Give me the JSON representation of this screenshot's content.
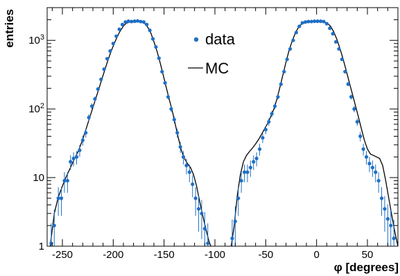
{
  "chart_data": {
    "type": "scatter",
    "title": "",
    "xlabel": "φ [degrees]",
    "ylabel": "entries",
    "xlim": [
      -265,
      80
    ],
    "ylim": [
      1,
      3000
    ],
    "yscale": "log",
    "x_ticks": [
      -250,
      -200,
      -150,
      -100,
      -50,
      0,
      50
    ],
    "x_tick_labels": [
      "-250",
      "-200",
      "-150",
      "-100",
      "-50",
      "0",
      "50"
    ],
    "y_ticks": [
      1,
      10,
      100,
      1000
    ],
    "y_tick_labels": [
      "1",
      "10",
      "10²",
      "10³"
    ],
    "grid": false,
    "legend_position": "top-center",
    "colors": {
      "data": "#1f6fc5",
      "mc": "#000000"
    },
    "series": [
      {
        "name": "data",
        "style": "points-with-errors",
        "points": [
          [
            -261,
            1.1
          ],
          [
            -258,
            2.0
          ],
          [
            -254,
            5.0
          ],
          [
            -251,
            5.0
          ],
          [
            -248,
            9.0
          ],
          [
            -245,
            9.0
          ],
          [
            -242,
            17
          ],
          [
            -239,
            19
          ],
          [
            -236,
            20
          ],
          [
            -233,
            25
          ],
          [
            -230,
            35
          ],
          [
            -227,
            45
          ],
          [
            -224,
            75
          ],
          [
            -221,
            110
          ],
          [
            -218,
            140
          ],
          [
            -215,
            195
          ],
          [
            -212,
            270
          ],
          [
            -209,
            380
          ],
          [
            -206,
            540
          ],
          [
            -203,
            700
          ],
          [
            -200,
            900
          ],
          [
            -197,
            1150
          ],
          [
            -194,
            1450
          ],
          [
            -191,
            1700
          ],
          [
            -188,
            1850
          ],
          [
            -185,
            1900
          ],
          [
            -182,
            1880
          ],
          [
            -179,
            1900
          ],
          [
            -176,
            1920
          ],
          [
            -173,
            1880
          ],
          [
            -170,
            1850
          ],
          [
            -167,
            1700
          ],
          [
            -164,
            1400
          ],
          [
            -161,
            1050
          ],
          [
            -158,
            800
          ],
          [
            -155,
            550
          ],
          [
            -152,
            350
          ],
          [
            -149,
            240
          ],
          [
            -146,
            150
          ],
          [
            -143,
            100
          ],
          [
            -140,
            70
          ],
          [
            -137,
            45
          ],
          [
            -134,
            28
          ],
          [
            -131,
            20
          ],
          [
            -128,
            15
          ],
          [
            -125,
            12
          ],
          [
            -122,
            8
          ],
          [
            -119,
            5
          ],
          [
            -116,
            3.5
          ],
          [
            -113,
            3.0
          ],
          [
            -110,
            1.8
          ],
          [
            -107,
            1.1
          ],
          [
            -83,
            1.3
          ],
          [
            -80,
            2.3
          ],
          [
            -77,
            5.0
          ],
          [
            -74,
            9
          ],
          [
            -71,
            12
          ],
          [
            -68,
            12
          ],
          [
            -65,
            14
          ],
          [
            -62,
            17
          ],
          [
            -59,
            19
          ],
          [
            -56,
            26
          ],
          [
            -53,
            38
          ],
          [
            -50,
            50
          ],
          [
            -47,
            65
          ],
          [
            -44,
            85
          ],
          [
            -41,
            110
          ],
          [
            -38,
            150
          ],
          [
            -35,
            230
          ],
          [
            -32,
            350
          ],
          [
            -29,
            530
          ],
          [
            -26,
            750
          ],
          [
            -23,
            1000
          ],
          [
            -20,
            1300
          ],
          [
            -17,
            1600
          ],
          [
            -14,
            1800
          ],
          [
            -11,
            1850
          ],
          [
            -8,
            1880
          ],
          [
            -5,
            1880
          ],
          [
            -2,
            1900
          ],
          [
            1,
            1900
          ],
          [
            4,
            1900
          ],
          [
            7,
            1880
          ],
          [
            10,
            1750
          ],
          [
            13,
            1500
          ],
          [
            16,
            1250
          ],
          [
            19,
            950
          ],
          [
            22,
            750
          ],
          [
            25,
            530
          ],
          [
            28,
            350
          ],
          [
            31,
            230
          ],
          [
            34,
            150
          ],
          [
            37,
            100
          ],
          [
            40,
            65
          ],
          [
            43,
            40
          ],
          [
            46,
            26
          ],
          [
            49,
            20
          ],
          [
            52,
            16
          ],
          [
            55,
            14
          ],
          [
            58,
            12
          ],
          [
            61,
            9
          ],
          [
            64,
            5
          ],
          [
            67,
            3.5
          ],
          [
            70,
            2.5
          ],
          [
            73,
            2.0
          ],
          [
            76,
            1.3
          ]
        ]
      },
      {
        "name": "MC",
        "style": "line",
        "segments": [
          [
            [
              -262,
              1.0
            ],
            [
              -258,
              3.0
            ],
            [
              -254,
              5.2
            ],
            [
              -250,
              7.5
            ],
            [
              -246,
              10.5
            ],
            [
              -242,
              14
            ],
            [
              -238,
              19
            ],
            [
              -234,
              25
            ],
            [
              -230,
              36
            ],
            [
              -226,
              55
            ],
            [
              -222,
              85
            ],
            [
              -218,
              130
            ],
            [
              -214,
              200
            ],
            [
              -210,
              310
            ],
            [
              -206,
              470
            ],
            [
              -202,
              700
            ],
            [
              -198,
              980
            ],
            [
              -194,
              1300
            ],
            [
              -190,
              1620
            ],
            [
              -187,
              1780
            ],
            [
              -184,
              1840
            ],
            [
              -180,
              1860
            ],
            [
              -176,
              1870
            ],
            [
              -172,
              1850
            ],
            [
              -169,
              1760
            ],
            [
              -166,
              1550
            ],
            [
              -163,
              1280
            ],
            [
              -160,
              960
            ],
            [
              -157,
              700
            ],
            [
              -154,
              480
            ],
            [
              -151,
              320
            ],
            [
              -148,
              210
            ],
            [
              -145,
              140
            ],
            [
              -142,
              95
            ],
            [
              -139,
              60
            ],
            [
              -136,
              38
            ],
            [
              -133,
              25
            ],
            [
              -130,
              19
            ],
            [
              -127,
              16
            ],
            [
              -124,
              14
            ],
            [
              -121,
              11
            ],
            [
              -118,
              7.5
            ],
            [
              -115,
              4.5
            ],
            [
              -112,
              2.8
            ],
            [
              -109,
              1.8
            ],
            [
              -106,
              1.2
            ],
            [
              -104,
              1.0
            ]
          ],
          [
            [
              -84,
              1.0
            ],
            [
              -81,
              2.0
            ],
            [
              -78,
              5.5
            ],
            [
              -75,
              11
            ],
            [
              -72,
              17
            ],
            [
              -69,
              21
            ],
            [
              -66,
              24
            ],
            [
              -63,
              27
            ],
            [
              -60,
              31
            ],
            [
              -57,
              36
            ],
            [
              -54,
              43
            ],
            [
              -51,
              52
            ],
            [
              -48,
              62
            ],
            [
              -45,
              78
            ],
            [
              -42,
              100
            ],
            [
              -39,
              140
            ],
            [
              -36,
              210
            ],
            [
              -33,
              320
            ],
            [
              -30,
              490
            ],
            [
              -27,
              720
            ],
            [
              -24,
              980
            ],
            [
              -21,
              1270
            ],
            [
              -18,
              1540
            ],
            [
              -15,
              1720
            ],
            [
              -12,
              1810
            ],
            [
              -8,
              1850
            ],
            [
              -4,
              1860
            ],
            [
              0,
              1870
            ],
            [
              4,
              1860
            ],
            [
              8,
              1840
            ],
            [
              11,
              1760
            ],
            [
              14,
              1590
            ],
            [
              17,
              1320
            ],
            [
              20,
              1030
            ],
            [
              23,
              760
            ],
            [
              26,
              540
            ],
            [
              29,
              370
            ],
            [
              32,
              250
            ],
            [
              35,
              170
            ],
            [
              38,
              115
            ],
            [
              41,
              78
            ],
            [
              44,
              52
            ],
            [
              47,
              35
            ],
            [
              50,
              26
            ],
            [
              53,
              22
            ],
            [
              56,
              21
            ],
            [
              59,
              20
            ],
            [
              62,
              19
            ],
            [
              65,
              15
            ],
            [
              68,
              9
            ],
            [
              71,
              5
            ],
            [
              74,
              2.8
            ],
            [
              77,
              1.6
            ],
            [
              80,
              1.0
            ]
          ]
        ]
      }
    ]
  }
}
